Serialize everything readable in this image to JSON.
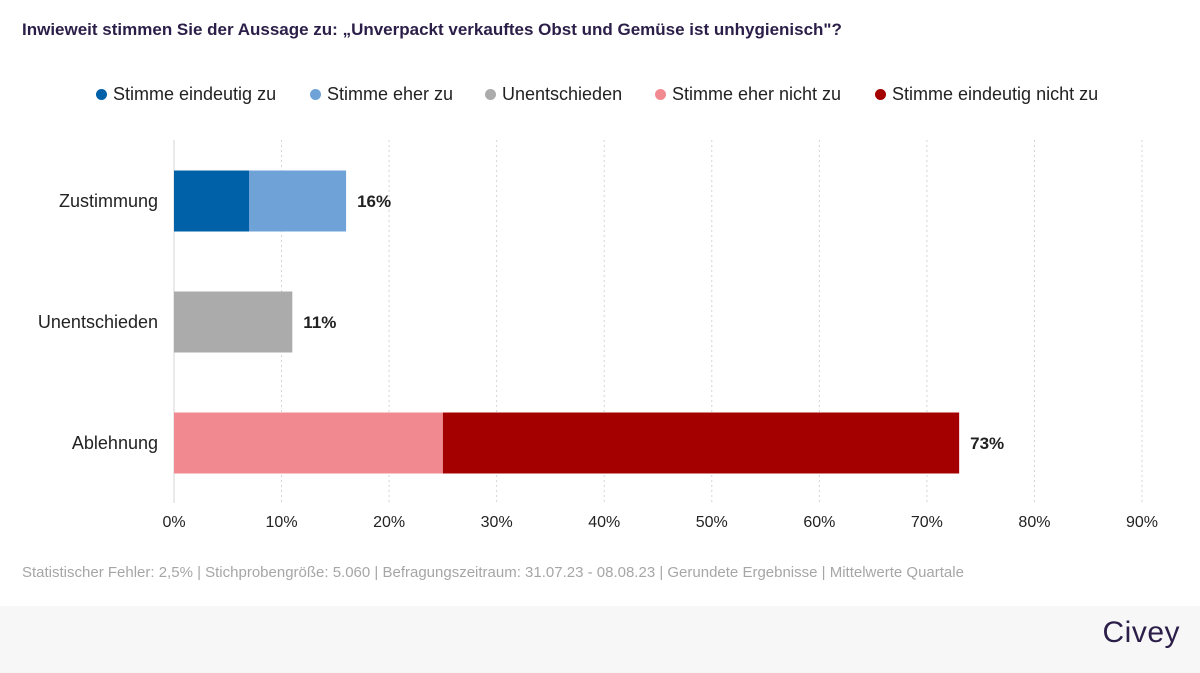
{
  "title": "Inwieweit stimmen Sie der Aussage zu: „Unverpackt verkauftes Obst und Gemüse ist unhygienisch\"?",
  "legend": [
    {
      "label": "Stimme eindeutig zu",
      "color": "#0060a8"
    },
    {
      "label": "Stimme eher zu",
      "color": "#6fa3d8"
    },
    {
      "label": "Unentschieden",
      "color": "#ababab"
    },
    {
      "label": "Stimme eher nicht zu",
      "color": "#f08a90"
    },
    {
      "label": "Stimme eindeutig nicht zu",
      "color": "#a40000"
    }
  ],
  "chart_data": {
    "type": "bar",
    "orientation": "horizontal",
    "stacked": true,
    "categories": [
      "Zustimmung",
      "Unentschieden",
      "Ablehnung"
    ],
    "series": [
      {
        "name": "Stimme eindeutig zu",
        "color": "#0060a8",
        "values": [
          7,
          0,
          0
        ]
      },
      {
        "name": "Stimme eher zu",
        "color": "#6fa3d8",
        "values": [
          9,
          0,
          0
        ]
      },
      {
        "name": "Unentschieden",
        "color": "#ababab",
        "values": [
          0,
          11,
          0
        ]
      },
      {
        "name": "Stimme eher nicht zu",
        "color": "#f08a90",
        "values": [
          0,
          0,
          25
        ]
      },
      {
        "name": "Stimme eindeutig nicht zu",
        "color": "#a40000",
        "values": [
          0,
          0,
          48
        ]
      }
    ],
    "totals": [
      "16%",
      "11%",
      "73%"
    ],
    "xlim": [
      0,
      90
    ],
    "xticks": [
      0,
      10,
      20,
      30,
      40,
      50,
      60,
      70,
      80,
      90
    ],
    "xtick_labels": [
      "0%",
      "10%",
      "20%",
      "30%",
      "40%",
      "50%",
      "60%",
      "70%",
      "80%",
      "90%"
    ],
    "grid": true,
    "legend_position": "top"
  },
  "footnote": "Statistischer Fehler: 2,5% | Stichprobengröße: 5.060 | Befragungszeitraum: 31.07.23 - 08.08.23 | Gerundete Ergebnisse | Mittelwerte Quartale",
  "brand": "Civey"
}
